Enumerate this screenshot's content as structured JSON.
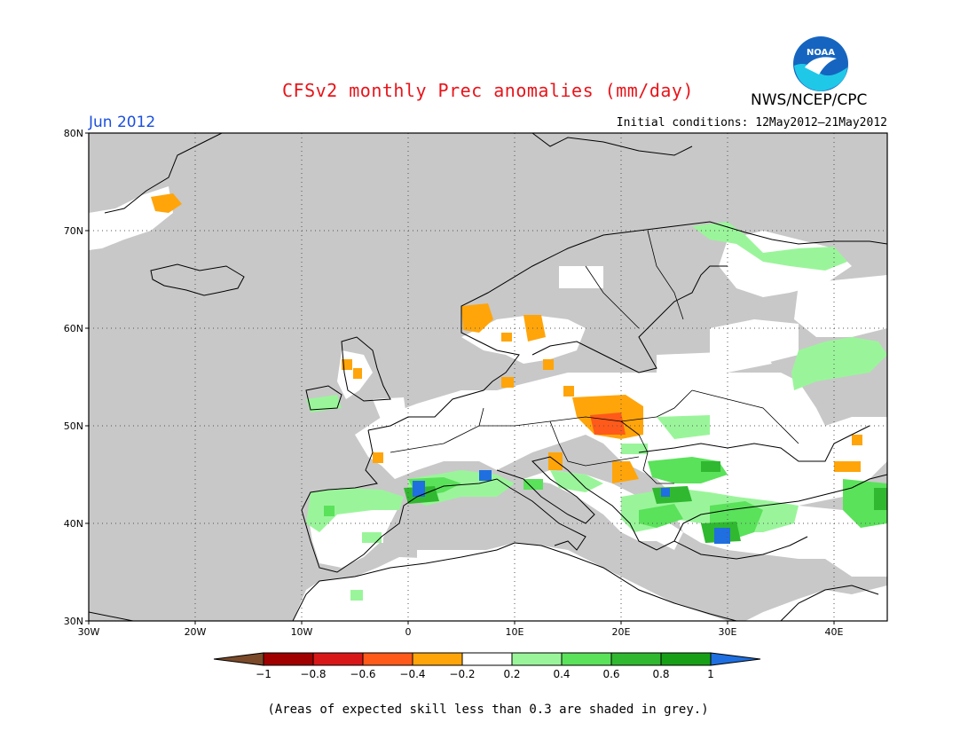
{
  "header": {
    "title": "CFSv2 monthly Prec anomalies (mm/day)",
    "agency": "NWS/NCEP/CPC",
    "logo_text": "NOAA",
    "month": "Jun 2012",
    "initial_conditions": "Initial conditions: 12May2012–21May2012"
  },
  "map": {
    "lat_labels": [
      "80N",
      "70N",
      "60N",
      "50N",
      "40N",
      "30N"
    ],
    "lon_labels": [
      "30W",
      "20W",
      "10W",
      "0",
      "10E",
      "20E",
      "30E",
      "40E"
    ],
    "ocean_color": "#c8c8c8",
    "land_skill_mask_color": "#c8c8c8"
  },
  "colorbar": {
    "tick_labels": [
      "−1",
      "−0.8",
      "−0.6",
      "−0.4",
      "−0.2",
      "0.2",
      "0.4",
      "0.6",
      "0.8",
      "1"
    ],
    "colors": [
      "#7a4a2a",
      "#a00000",
      "#d81818",
      "#ff5a1a",
      "#ffa50a",
      "#ffffff",
      "#9af59a",
      "#5ae25a",
      "#30b830",
      "#17a017",
      "#1f6fe0"
    ]
  },
  "footnote": "(Areas of expected skill less than 0.3 are shaded in grey.)"
}
